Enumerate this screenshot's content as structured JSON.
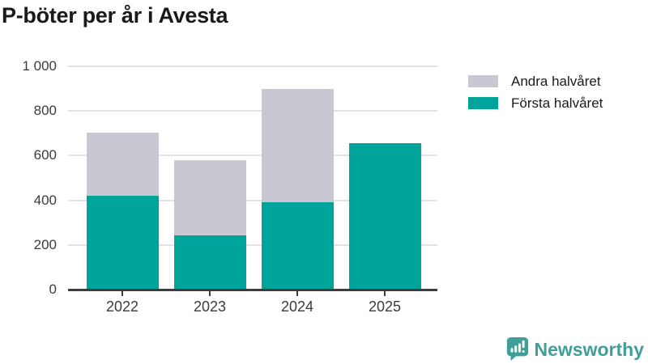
{
  "title": "P-böter per år i Avesta",
  "colors": {
    "first_half": "#00a49a",
    "second_half": "#c9c7d1",
    "grid": "#e2e2e4",
    "axis": "#3d3d3d",
    "tick_text": "#3c3c3c",
    "title_text": "#1a1a1a",
    "brand_teal": "#3f9e97"
  },
  "legend": [
    {
      "label": "Andra halvåret",
      "color": "#c9c7d1"
    },
    {
      "label": "Första halvåret",
      "color": "#00a49a"
    }
  ],
  "chart_data": {
    "type": "bar",
    "stacked": true,
    "title": "P-böter per år i Avesta",
    "categories": [
      "2022",
      "2023",
      "2024",
      "2025"
    ],
    "series": [
      {
        "name": "Första halvåret",
        "color": "#00a49a",
        "values": [
          420,
          244,
          390,
          655
        ]
      },
      {
        "name": "Andra halvåret",
        "color": "#c9c7d1",
        "values": [
          284,
          336,
          507,
          0
        ]
      }
    ],
    "totals": [
      704,
      580,
      897,
      655
    ],
    "xlabel": "",
    "ylabel": "",
    "ylim": [
      0,
      1000
    ],
    "yticks": [
      0,
      200,
      400,
      600,
      800,
      1000
    ],
    "ytick_labels": [
      "0",
      "200",
      "400",
      "600",
      "800",
      "1 000"
    ],
    "grid": "horizontal",
    "legend_position": "top-right"
  },
  "branding": {
    "logo_text": "Newsworthy",
    "logo_icon": "newsworthy-speech-bubble-bar-chart-icon"
  }
}
